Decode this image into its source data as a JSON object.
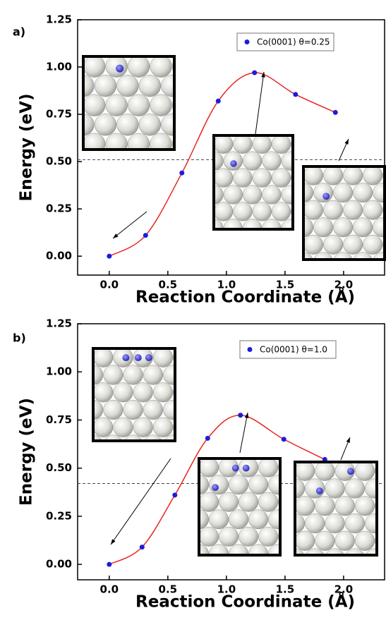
{
  "chart_data": [
    {
      "type": "line",
      "smooth": true,
      "panel_label": "a)",
      "x_label": "Reaction Coordinate (Å)",
      "y_label": "Energy (eV)",
      "x": [
        0.0,
        0.31,
        0.62,
        0.93,
        1.24,
        1.59,
        1.93
      ],
      "series": [
        {
          "name": "Co(0001) θ=0.25",
          "color": "#1c1ce0",
          "line_color": "#e8251f",
          "values": [
            0.0,
            0.11,
            0.44,
            0.82,
            0.97,
            0.855,
            0.76
          ]
        }
      ],
      "reference_line": 0.51,
      "xlim": [
        -0.27,
        2.35
      ],
      "ylim": [
        -0.1,
        1.25
      ],
      "xticks": [
        {
          "value": 0,
          "label": "0.0"
        },
        0.5,
        {
          "value": 1,
          "label": "1.0"
        },
        1.5,
        {
          "value": 2,
          "label": "2.0"
        }
      ],
      "yticks": [
        {
          "value": 0,
          "label": "0.00"
        },
        {
          "value": 0.25,
          "label": "0.25"
        },
        {
          "value": 0.5,
          "label": "0.50"
        },
        {
          "value": 0.75,
          "label": "0.75"
        },
        {
          "value": 1,
          "label": "1.00"
        },
        {
          "value": 1.25,
          "label": "1.25"
        }
      ],
      "legend": "upper right"
    },
    {
      "type": "line",
      "smooth": true,
      "panel_label": "b)",
      "x_label": "Reaction Coordinate (Å)",
      "y_label": "Energy (eV)",
      "x": [
        0.0,
        0.28,
        0.56,
        0.84,
        1.12,
        1.49,
        1.84
      ],
      "series": [
        {
          "name": "Co(0001) θ=1.0",
          "color": "#1c1ce0",
          "line_color": "#e8251f",
          "values": [
            0.0,
            0.09,
            0.36,
            0.655,
            0.775,
            0.65,
            0.545
          ]
        }
      ],
      "reference_line": 0.42,
      "xlim": [
        -0.27,
        2.35
      ],
      "ylim": [
        -0.08,
        1.25
      ],
      "xticks": [
        {
          "value": 0,
          "label": "0.0"
        },
        0.5,
        {
          "value": 1,
          "label": "1.0"
        },
        1.5,
        {
          "value": 2,
          "label": "2.0"
        }
      ],
      "yticks": [
        {
          "value": 0,
          "label": "0.00"
        },
        {
          "value": 0.25,
          "label": "0.25"
        },
        {
          "value": 0.5,
          "label": "0.50"
        },
        {
          "value": 0.75,
          "label": "0.75"
        },
        {
          "value": 1,
          "label": "1.00"
        },
        {
          "value": 1.25,
          "label": "1.25"
        }
      ],
      "legend": "upper right"
    }
  ]
}
